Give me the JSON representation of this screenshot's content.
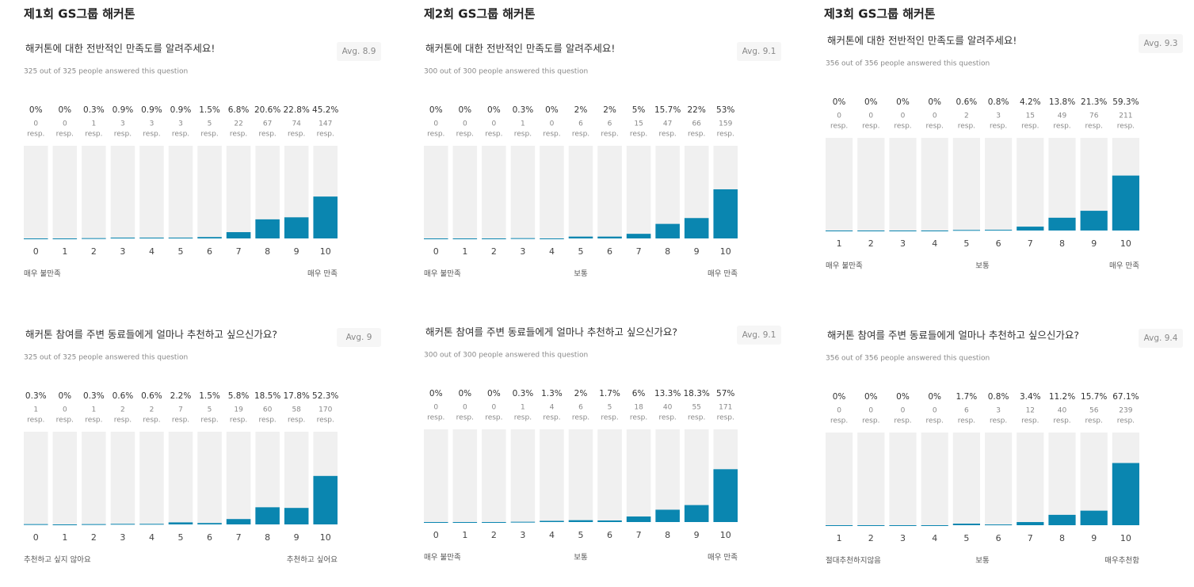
{
  "headings": [
    "제1회 GS그룹 해커톤",
    "제2회 GS그룹 해커톤",
    "제3회 GS그룹 해커톤"
  ],
  "chart_data": [
    {
      "type": "bar",
      "title": "해커톤에 대한 전반적인 만족도를 알려주세요!",
      "subtitle": "325 out of 325 people answered this question",
      "average": "Avg. 8.9",
      "categories": [
        "0",
        "1",
        "2",
        "3",
        "4",
        "5",
        "6",
        "7",
        "8",
        "9",
        "10"
      ],
      "values": [
        0,
        0,
        0.3,
        0.9,
        0.9,
        0.9,
        1.5,
        6.8,
        20.6,
        22.8,
        45.2
      ],
      "value_labels": [
        "0%",
        "0%",
        "0.3%",
        "0.9%",
        "0.9%",
        "0.9%",
        "1.5%",
        "6.8%",
        "20.6%",
        "22.8%",
        "45.2%"
      ],
      "responses": [
        0,
        0,
        1,
        3,
        3,
        3,
        5,
        22,
        67,
        74,
        147
      ],
      "response_unit": "resp.",
      "scale_labels": [
        "매우 불만족",
        "매우 만족"
      ],
      "ylim": [
        0,
        100
      ],
      "color": "#0a86b0"
    },
    {
      "type": "bar",
      "title": "해커톤에 대한 전반적인 만족도를 알려주세요!",
      "subtitle": "300 out of 300 people answered this question",
      "average": "Avg. 9.1",
      "categories": [
        "0",
        "1",
        "2",
        "3",
        "4",
        "5",
        "6",
        "7",
        "8",
        "9",
        "10"
      ],
      "values": [
        0,
        0,
        0,
        0.3,
        0,
        2,
        2,
        5,
        15.7,
        22,
        53
      ],
      "value_labels": [
        "0%",
        "0%",
        "0%",
        "0.3%",
        "0%",
        "2%",
        "2%",
        "5%",
        "15.7%",
        "22%",
        "53%"
      ],
      "responses": [
        0,
        0,
        0,
        1,
        0,
        6,
        6,
        15,
        47,
        66,
        159
      ],
      "response_unit": "resp.",
      "scale_labels": [
        "매우 불만족",
        "보통",
        "매우 만족"
      ],
      "ylim": [
        0,
        100
      ],
      "color": "#0a86b0"
    },
    {
      "type": "bar",
      "title": "해커톤에 대한 전반적인 만족도를 알려주세요!",
      "subtitle": "356 out of 356 people answered this question",
      "average": "Avg. 9.3",
      "categories": [
        "1",
        "2",
        "3",
        "4",
        "5",
        "6",
        "7",
        "8",
        "9",
        "10"
      ],
      "values": [
        0,
        0,
        0,
        0,
        0.6,
        0.8,
        4.2,
        13.8,
        21.3,
        59.3
      ],
      "value_labels": [
        "0%",
        "0%",
        "0%",
        "0%",
        "0.6%",
        "0.8%",
        "4.2%",
        "13.8%",
        "21.3%",
        "59.3%"
      ],
      "responses": [
        0,
        0,
        0,
        0,
        2,
        3,
        15,
        49,
        76,
        211
      ],
      "response_unit": "resp.",
      "scale_labels": [
        "매우 불만족",
        "보통",
        "매우 만족"
      ],
      "ylim": [
        0,
        100
      ],
      "color": "#0a86b0"
    },
    {
      "type": "bar",
      "title": "해커톤 참여를 주변 동료들에게 얼마나 추천하고 싶으신가요?",
      "subtitle": "325 out of 325 people answered this question",
      "average": "Avg. 9",
      "categories": [
        "0",
        "1",
        "2",
        "3",
        "4",
        "5",
        "6",
        "7",
        "8",
        "9",
        "10"
      ],
      "values": [
        0.3,
        0,
        0.3,
        0.6,
        0.6,
        2.2,
        1.5,
        5.8,
        18.5,
        17.8,
        52.3
      ],
      "value_labels": [
        "0.3%",
        "0%",
        "0.3%",
        "0.6%",
        "0.6%",
        "2.2%",
        "1.5%",
        "5.8%",
        "18.5%",
        "17.8%",
        "52.3%"
      ],
      "responses": [
        1,
        0,
        1,
        2,
        2,
        7,
        5,
        19,
        60,
        58,
        170
      ],
      "response_unit": "resp.",
      "scale_labels": [
        "추천하고 싶지 않아요",
        "추천하고 싶어요"
      ],
      "ylim": [
        0,
        100
      ],
      "color": "#0a86b0"
    },
    {
      "type": "bar",
      "title": "해커톤 참여를 주변 동료들에게 얼마나 추천하고 싶으신가요?",
      "subtitle": "300 out of 300 people answered this question",
      "average": "Avg. 9.1",
      "categories": [
        "0",
        "1",
        "2",
        "3",
        "4",
        "5",
        "6",
        "7",
        "8",
        "9",
        "10"
      ],
      "values": [
        0,
        0,
        0,
        0.3,
        1.3,
        2,
        1.7,
        6,
        13.3,
        18.3,
        57
      ],
      "value_labels": [
        "0%",
        "0%",
        "0%",
        "0.3%",
        "1.3%",
        "2%",
        "1.7%",
        "6%",
        "13.3%",
        "18.3%",
        "57%"
      ],
      "responses": [
        0,
        0,
        0,
        1,
        4,
        6,
        5,
        18,
        40,
        55,
        171
      ],
      "response_unit": "resp.",
      "scale_labels": [
        "매우 불만족",
        "보통",
        "매우 만족"
      ],
      "ylim": [
        0,
        100
      ],
      "color": "#0a86b0"
    },
    {
      "type": "bar",
      "title": "해커톤 참여를 주변 동료들에게 얼마나 추천하고 싶으신가요?",
      "subtitle": "356 out of 356 people answered this question",
      "average": "Avg. 9.4",
      "categories": [
        "1",
        "2",
        "3",
        "4",
        "5",
        "6",
        "7",
        "8",
        "9",
        "10"
      ],
      "values": [
        0,
        0,
        0,
        0,
        1.7,
        0.8,
        3.4,
        11.2,
        15.7,
        67.1
      ],
      "value_labels": [
        "0%",
        "0%",
        "0%",
        "0%",
        "1.7%",
        "0.8%",
        "3.4%",
        "11.2%",
        "15.7%",
        "67.1%"
      ],
      "responses": [
        0,
        0,
        0,
        0,
        6,
        3,
        12,
        40,
        56,
        239
      ],
      "response_unit": "resp.",
      "scale_labels": [
        "절대추천하지않음",
        "보통",
        "매우추천함"
      ],
      "ylim": [
        0,
        100
      ],
      "color": "#0a86b0"
    }
  ]
}
